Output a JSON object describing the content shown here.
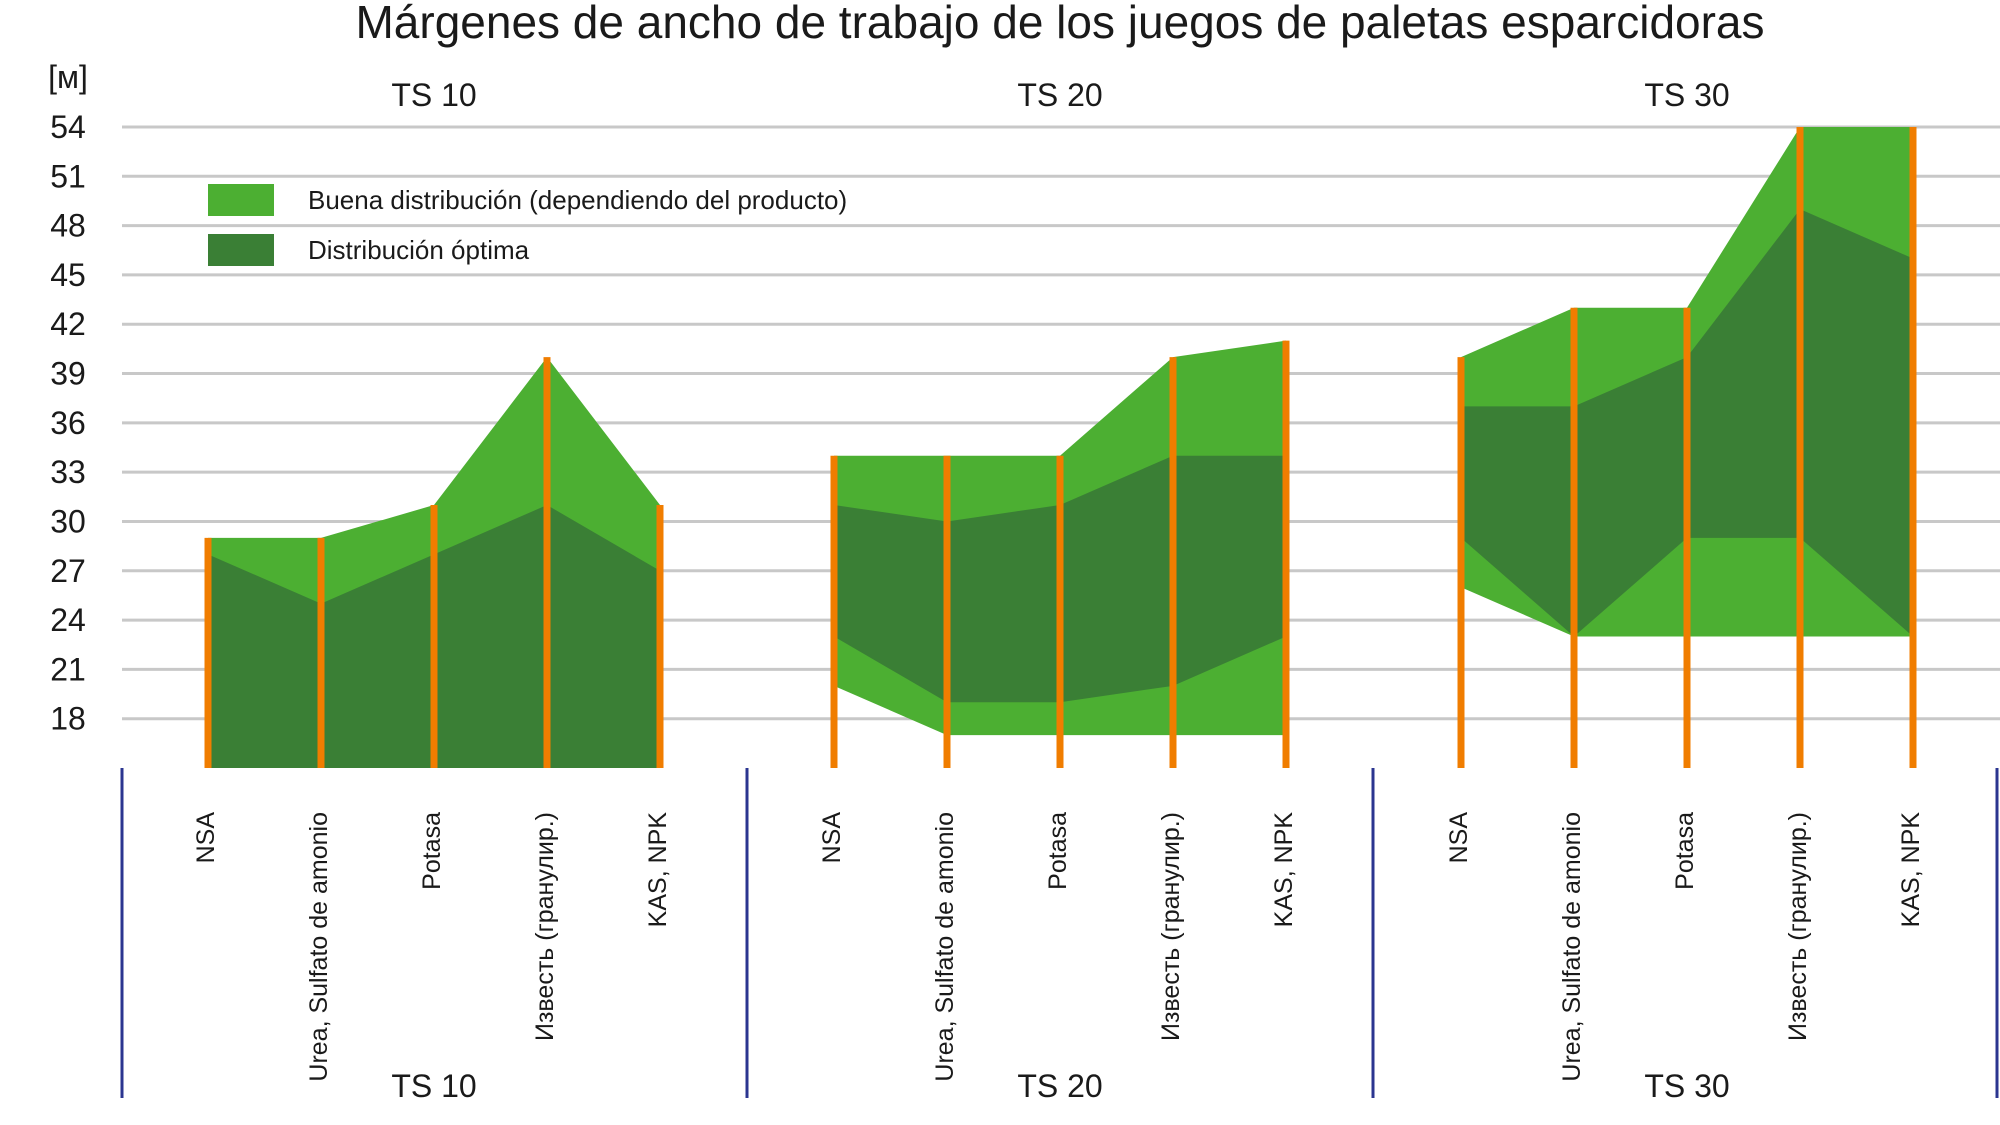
{
  "chart_data": {
    "type": "area",
    "title": "Márgenes de ancho de trabajo de los juegos de paletas esparcidoras",
    "ylabel": "[м]",
    "ylim": [
      15,
      54
    ],
    "yticks": [
      18,
      21,
      24,
      27,
      30,
      33,
      36,
      39,
      42,
      45,
      48,
      51,
      54
    ],
    "grid": true,
    "legend_position": "top-left",
    "legend": [
      {
        "label": "Buena distribución (dependiendo del producto)",
        "color": "#4caf32"
      },
      {
        "label": "Distribución óptima",
        "color": "#3a7f35"
      }
    ],
    "colors": {
      "good": "#4caf32",
      "optimal": "#3a7f35",
      "marker": "#f07d00",
      "grid": "#c8c8c8",
      "divider": "#2b3590"
    },
    "categories": [
      "NSA",
      "Urea, Sulfato de amonio",
      "Potasa",
      "Известь (гранулир.)",
      "KAS, NPK"
    ],
    "groups": [
      {
        "name": "TS 10",
        "good_max": [
          29,
          29,
          31,
          40,
          31
        ],
        "good_min": [
          15,
          15,
          15,
          15,
          15
        ],
        "optimal_max": [
          28,
          25,
          28,
          31,
          27
        ],
        "optimal_min": [
          15,
          15,
          15,
          15,
          15
        ]
      },
      {
        "name": "TS 20",
        "good_max": [
          34,
          34,
          34,
          40,
          41
        ],
        "good_min": [
          20,
          17,
          17,
          17,
          17
        ],
        "optimal_max": [
          31,
          30,
          31,
          34,
          34
        ],
        "optimal_min": [
          23,
          19,
          19,
          20,
          23
        ]
      },
      {
        "name": "TS 30",
        "good_max": [
          40,
          43,
          43,
          54,
          54
        ],
        "good_min": [
          26,
          23,
          23,
          23,
          23
        ],
        "optimal_max": [
          37,
          37,
          40,
          49,
          46
        ],
        "optimal_min": [
          29,
          23,
          29,
          29,
          23
        ]
      }
    ]
  }
}
